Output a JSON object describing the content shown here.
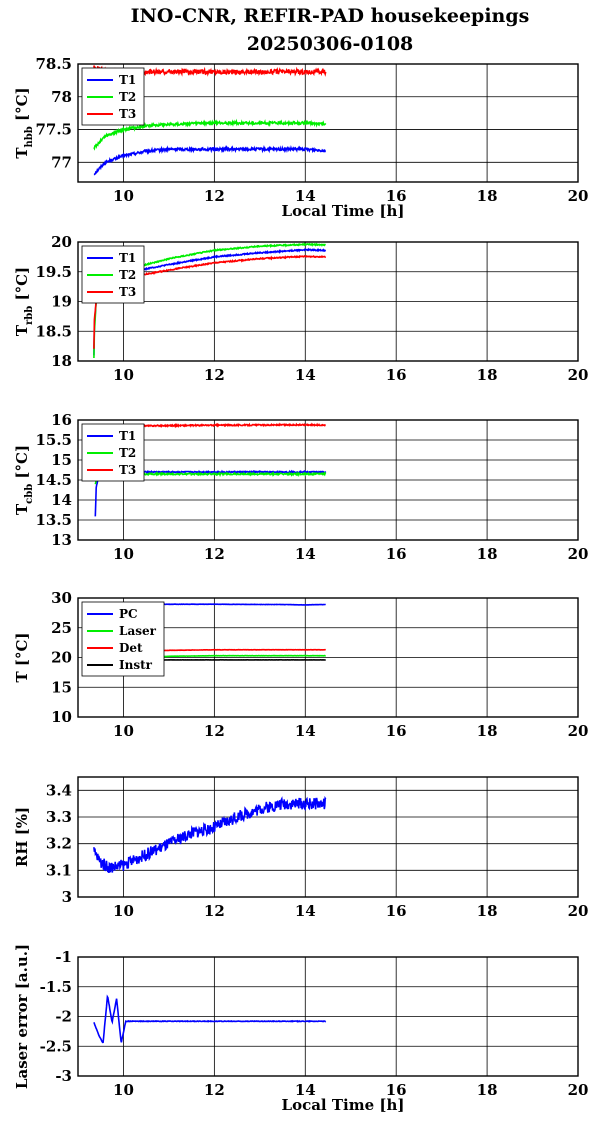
{
  "title_line1": "INO-CNR, REFIR-PAD housekeepings",
  "title_line2": "20250306-0108",
  "colors": {
    "blue": "#0000ff",
    "green": "#00ee00",
    "red": "#ff0000",
    "black": "#000000"
  },
  "chart_data": [
    {
      "type": "line",
      "ylabel_main": "T",
      "ylabel_sub": "hbb",
      "ylabel_unit": " [°C]",
      "xlabel": "Local Time [h]",
      "xlim": [
        9,
        20
      ],
      "xticks": [
        10,
        12,
        14,
        16,
        18,
        20
      ],
      "ylim": [
        76.7,
        78.5
      ],
      "yticks": [
        77,
        77.5,
        78,
        78.5
      ],
      "legend_position": "top-left",
      "grid": true,
      "series": [
        {
          "name": "T1",
          "color": "blue",
          "x": [
            9.35,
            9.6,
            10.0,
            10.5,
            11.0,
            12.0,
            13.0,
            14.0,
            14.45
          ],
          "values": [
            76.82,
            77.0,
            77.1,
            77.17,
            77.2,
            77.2,
            77.2,
            77.2,
            77.18
          ],
          "noise": 0.02
        },
        {
          "name": "T2",
          "color": "green",
          "x": [
            9.35,
            9.6,
            10.0,
            10.5,
            11.0,
            12.0,
            13.0,
            14.0,
            14.45
          ],
          "values": [
            77.22,
            77.4,
            77.5,
            77.56,
            77.58,
            77.6,
            77.6,
            77.6,
            77.58
          ],
          "noise": 0.02
        },
        {
          "name": "T3",
          "color": "red",
          "x": [
            9.35,
            9.6,
            10.0,
            11.0,
            12.0,
            13.0,
            14.0,
            14.45
          ],
          "values": [
            78.45,
            78.4,
            78.38,
            78.38,
            78.38,
            78.38,
            78.38,
            78.38
          ],
          "noise": 0.035
        }
      ]
    },
    {
      "type": "line",
      "ylabel_main": "T",
      "ylabel_sub": "rbb",
      "ylabel_unit": " [°C]",
      "xlabel": "",
      "xlim": [
        9,
        20
      ],
      "xticks": [
        10,
        12,
        14,
        16,
        18,
        20
      ],
      "ylim": [
        18,
        20
      ],
      "yticks": [
        18,
        18.5,
        19,
        19.5,
        20
      ],
      "legend_position": "top-left",
      "grid": true,
      "series": [
        {
          "name": "T1",
          "color": "blue",
          "x": [
            9.35,
            9.36,
            9.4,
            9.45,
            9.5,
            10.0,
            10.5,
            11.0,
            12.0,
            13.0,
            14.0,
            14.45
          ],
          "values": [
            18.1,
            18.6,
            19.0,
            19.3,
            19.4,
            19.45,
            19.55,
            19.62,
            19.75,
            19.82,
            19.87,
            19.86
          ],
          "noise": 0.01
        },
        {
          "name": "T2",
          "color": "green",
          "x": [
            9.35,
            9.36,
            9.4,
            9.45,
            9.5,
            10.0,
            10.5,
            11.0,
            12.0,
            13.0,
            14.0,
            14.45
          ],
          "values": [
            18.05,
            18.5,
            19.0,
            19.3,
            19.45,
            19.52,
            19.62,
            19.72,
            19.86,
            19.93,
            19.96,
            19.95
          ],
          "noise": 0.01
        },
        {
          "name": "T3",
          "color": "red",
          "x": [
            9.35,
            9.36,
            9.4,
            9.45,
            9.5,
            10.0,
            10.5,
            11.0,
            12.0,
            13.0,
            14.0,
            14.45
          ],
          "values": [
            18.2,
            18.7,
            19.0,
            19.2,
            19.3,
            19.38,
            19.46,
            19.53,
            19.65,
            19.72,
            19.76,
            19.75
          ],
          "noise": 0.01
        }
      ]
    },
    {
      "type": "line",
      "ylabel_main": "T",
      "ylabel_sub": "cbb",
      "ylabel_unit": " [°C]",
      "xlabel": "",
      "xlim": [
        9,
        20
      ],
      "xticks": [
        10,
        12,
        14,
        16,
        18,
        20
      ],
      "ylim": [
        13,
        16
      ],
      "yticks": [
        13,
        13.5,
        14,
        14.5,
        15,
        15.5,
        16
      ],
      "legend_position": "top-left",
      "grid": true,
      "series": [
        {
          "name": "T1",
          "color": "blue",
          "x": [
            9.38,
            9.4,
            9.45,
            9.55,
            10.0,
            12.0,
            14.0,
            14.45
          ],
          "values": [
            13.6,
            14.3,
            14.6,
            14.7,
            14.7,
            14.7,
            14.7,
            14.7
          ],
          "noise": 0.015
        },
        {
          "name": "T2",
          "color": "green",
          "x": [
            9.38,
            9.4,
            9.45,
            9.55,
            10.0,
            12.0,
            14.0,
            14.45
          ],
          "values": [
            14.4,
            14.5,
            14.6,
            14.65,
            14.65,
            14.65,
            14.65,
            14.65
          ],
          "noise": 0.02
        },
        {
          "name": "T3",
          "color": "red",
          "x": [
            9.38,
            9.5,
            10.0,
            12.0,
            14.0,
            14.45
          ],
          "values": [
            15.85,
            15.85,
            15.85,
            15.87,
            15.88,
            15.87
          ],
          "noise": 0.015
        }
      ]
    },
    {
      "type": "line",
      "ylabel_main": "T [°C]",
      "ylabel_sub": "",
      "ylabel_unit": "",
      "xlabel": "",
      "xlim": [
        9,
        20
      ],
      "xticks": [
        10,
        12,
        14,
        16,
        18,
        20
      ],
      "ylim": [
        10,
        30
      ],
      "yticks": [
        10,
        15,
        20,
        25,
        30
      ],
      "legend_position": "top-left",
      "grid": true,
      "series": [
        {
          "name": "PC",
          "color": "blue",
          "x": [
            9.35,
            10.0,
            12.0,
            13.5,
            14.0,
            14.45
          ],
          "values": [
            28.9,
            28.95,
            28.95,
            28.9,
            28.85,
            28.9
          ],
          "noise": 0.02
        },
        {
          "name": "Laser",
          "color": "green",
          "x": [
            9.35,
            10.0,
            11.0,
            12.0,
            14.0,
            14.45
          ],
          "values": [
            19.6,
            19.8,
            20.2,
            20.3,
            20.3,
            20.3
          ],
          "noise": 0.02
        },
        {
          "name": "Det",
          "color": "red",
          "x": [
            9.35,
            10.0,
            11.0,
            12.0,
            14.0,
            14.45
          ],
          "values": [
            20.8,
            21.0,
            21.2,
            21.3,
            21.3,
            21.3
          ],
          "noise": 0.02
        },
        {
          "name": "Instr",
          "color": "black",
          "x": [
            9.35,
            10.0,
            11.0,
            12.0,
            14.0,
            14.45
          ],
          "values": [
            19.5,
            19.55,
            19.6,
            19.6,
            19.6,
            19.6
          ],
          "noise": 0.01
        }
      ]
    },
    {
      "type": "line",
      "ylabel_main": "RH [%]",
      "ylabel_sub": "",
      "ylabel_unit": "",
      "xlabel": "",
      "xlim": [
        9,
        20
      ],
      "xticks": [
        10,
        12,
        14,
        16,
        18,
        20
      ],
      "ylim": [
        3,
        3.45
      ],
      "yticks": [
        3,
        3.1,
        3.2,
        3.3,
        3.4
      ],
      "legend_position": "none",
      "grid": true,
      "series": [
        {
          "name": "",
          "color": "blue",
          "x": [
            9.35,
            9.5,
            9.7,
            10.0,
            10.5,
            11.0,
            11.5,
            12.0,
            12.5,
            13.0,
            13.5,
            14.0,
            14.45
          ],
          "values": [
            3.17,
            3.13,
            3.11,
            3.12,
            3.16,
            3.2,
            3.24,
            3.26,
            3.3,
            3.33,
            3.35,
            3.35,
            3.35
          ],
          "noise": 0.022
        }
      ]
    },
    {
      "type": "line",
      "ylabel_main": "Laser error [a.u.]",
      "ylabel_sub": "",
      "ylabel_unit": "",
      "xlabel": "Local Time [h]",
      "xlim": [
        9,
        20
      ],
      "xticks": [
        10,
        12,
        14,
        16,
        18,
        20
      ],
      "ylim": [
        -3,
        -1
      ],
      "yticks": [
        -3,
        -2.5,
        -2,
        -1.5,
        -1
      ],
      "legend_position": "none",
      "grid": true,
      "series": [
        {
          "name": "",
          "color": "blue",
          "x": [
            9.35,
            9.45,
            9.55,
            9.65,
            9.75,
            9.85,
            9.95,
            10.05,
            10.2,
            12.0,
            14.0,
            14.45
          ],
          "values": [
            -2.1,
            -2.3,
            -2.45,
            -1.65,
            -2.1,
            -1.7,
            -2.45,
            -2.08,
            -2.08,
            -2.08,
            -2.08,
            -2.08
          ],
          "noise": 0.005
        }
      ]
    }
  ]
}
